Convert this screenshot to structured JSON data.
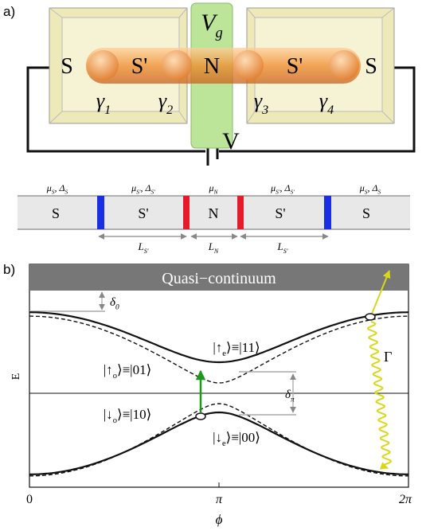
{
  "panel_a": {
    "label": "a)",
    "gate": [
      "V",
      "g"
    ],
    "segments": [
      "S",
      "S'",
      "N",
      "S'",
      "S"
    ],
    "majoranas": [
      [
        "γ",
        "1"
      ],
      [
        "γ",
        "2"
      ],
      [
        "γ",
        "3"
      ],
      [
        "γ",
        "4"
      ]
    ],
    "bias": "V",
    "strip": {
      "segments": [
        "S",
        "S'",
        "N",
        "S'",
        "S"
      ],
      "parameters": [
        [
          "μ",
          "S",
          ", Δ",
          "S"
        ],
        [
          "μ",
          "S'",
          ", Δ",
          "S'"
        ],
        [
          "μ",
          "N"
        ],
        [
          "μ",
          "S'",
          ", Δ",
          "S'"
        ],
        [
          "μ",
          "S",
          ", Δ",
          "S"
        ]
      ],
      "lengths": [
        [
          "L",
          "S'"
        ],
        [
          "L",
          "N"
        ],
        [
          "L",
          "S'"
        ]
      ]
    }
  },
  "panel_b": {
    "label": "b)",
    "band": "Quasi−continuum",
    "gap": [
      "δ",
      "0"
    ],
    "splitting": [
      "δ",
      "π"
    ],
    "rate": "Γ",
    "states": [
      [
        "|↑",
        "e",
        "⟩≡|11⟩"
      ],
      [
        "|↑",
        "o",
        "⟩≡|01⟩"
      ],
      [
        "|↓",
        "o",
        "⟩≡|10⟩"
      ],
      [
        "|↓",
        "e",
        "⟩≡|00⟩"
      ]
    ],
    "y_label": "E",
    "x_label": "ϕ",
    "x_ticks": [
      "0",
      "π",
      "2π"
    ]
  }
}
